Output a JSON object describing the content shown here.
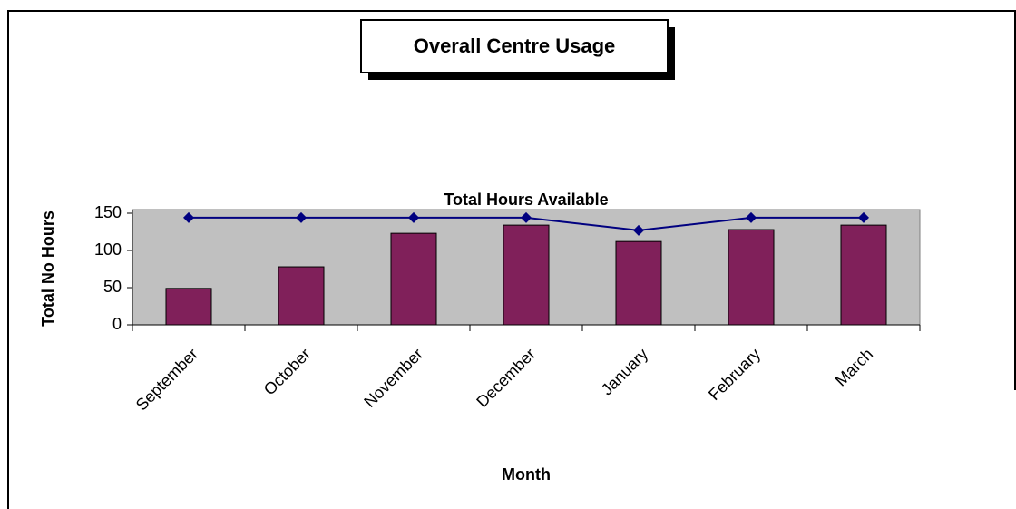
{
  "chart_data": {
    "type": "bar",
    "title": "Overall Centre Usage",
    "x_label": "Month",
    "y_label": "Total No Hours",
    "categories": [
      "September",
      "October",
      "November",
      "December",
      "January",
      "February",
      "March"
    ],
    "series": [
      {
        "type": "bar",
        "color": "#80205a",
        "values": [
          49,
          78,
          123,
          134,
          112,
          128,
          134
        ]
      },
      {
        "type": "line",
        "name": "Total Hours Available",
        "color": "#000080",
        "values": [
          144,
          144,
          144,
          144,
          127,
          144,
          144
        ]
      }
    ],
    "ylim": [
      0,
      150
    ],
    "yticks": [
      0,
      50,
      100,
      150
    ],
    "plot_background": "#c0c0c0"
  }
}
